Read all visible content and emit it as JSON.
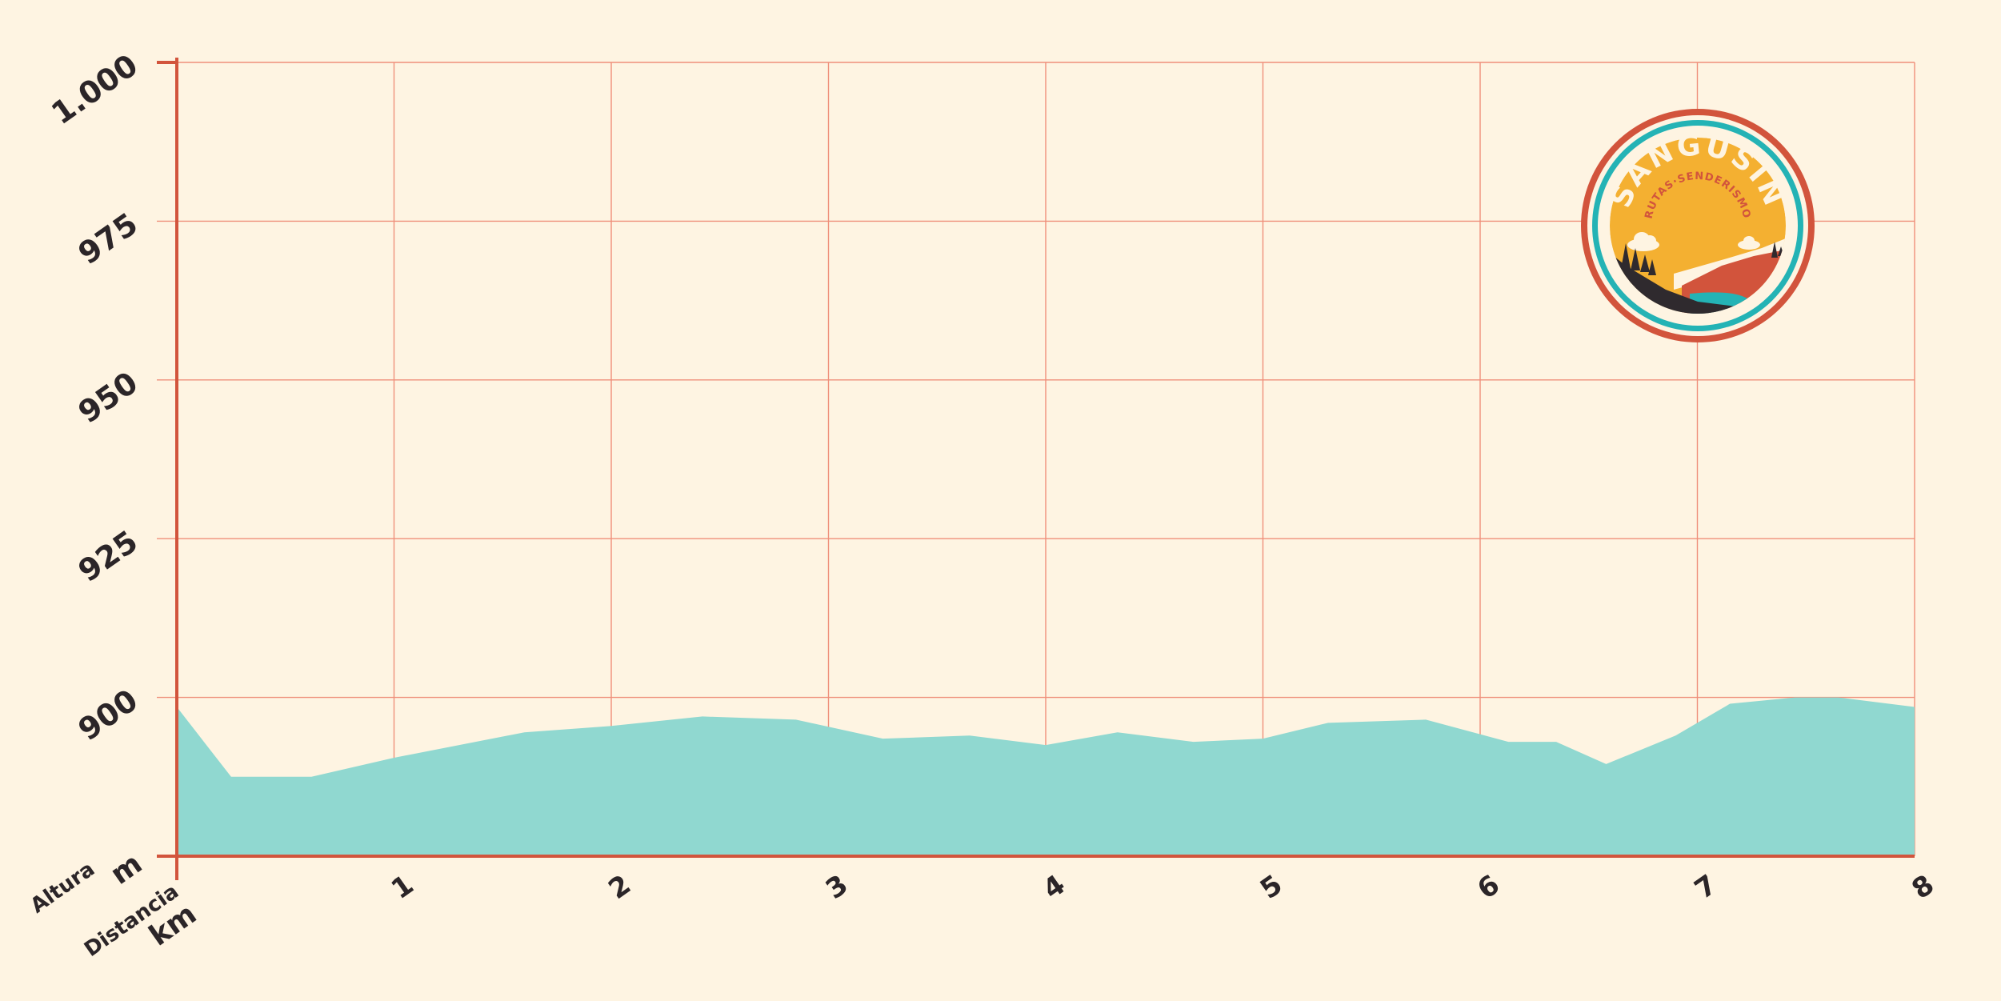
{
  "chart_data": {
    "type": "area",
    "xlabel": "Distancia",
    "xunit": "km",
    "ylabel": "Altura",
    "yunit": "m",
    "xlim": [
      0,
      8
    ],
    "ylim": [
      875,
      1000
    ],
    "x_ticks": [
      "1",
      "2",
      "3",
      "4",
      "5",
      "6",
      "7",
      "8"
    ],
    "y_ticks": [
      "1.000",
      "975",
      "950",
      "925",
      "900"
    ],
    "grid": true,
    "colors": {
      "area": "#90d8d0",
      "grid": "#ef8f7a",
      "axis": "#d2543c",
      "background": "#fef4e2"
    },
    "series": [
      {
        "x": [
          0,
          0.25,
          0.62,
          1.0,
          1.6,
          2.0,
          2.42,
          2.85,
          3.25,
          3.65,
          4.0,
          4.33,
          4.68,
          5.0,
          5.3,
          5.75,
          6.13,
          6.35,
          6.58,
          6.9,
          7.15,
          7.45,
          7.65,
          8.0
        ],
        "y": [
          898.5,
          887.5,
          887.5,
          890.5,
          894.5,
          895.5,
          897.0,
          896.5,
          893.5,
          894.0,
          892.5,
          894.5,
          893.0,
          893.5,
          896.0,
          896.5,
          893.0,
          893.0,
          889.5,
          894.0,
          899.0,
          900.0,
          900.0,
          898.5
        ]
      }
    ]
  },
  "logo": {
    "name": "SANGUSIN",
    "subtitle": "RUTAS·SENDERISMO",
    "colors": {
      "ring": "#d2543c",
      "teal": "#24b3b5",
      "sun": "#f4b031",
      "dark": "#2f2a2e",
      "cream": "#fef4e2"
    }
  }
}
